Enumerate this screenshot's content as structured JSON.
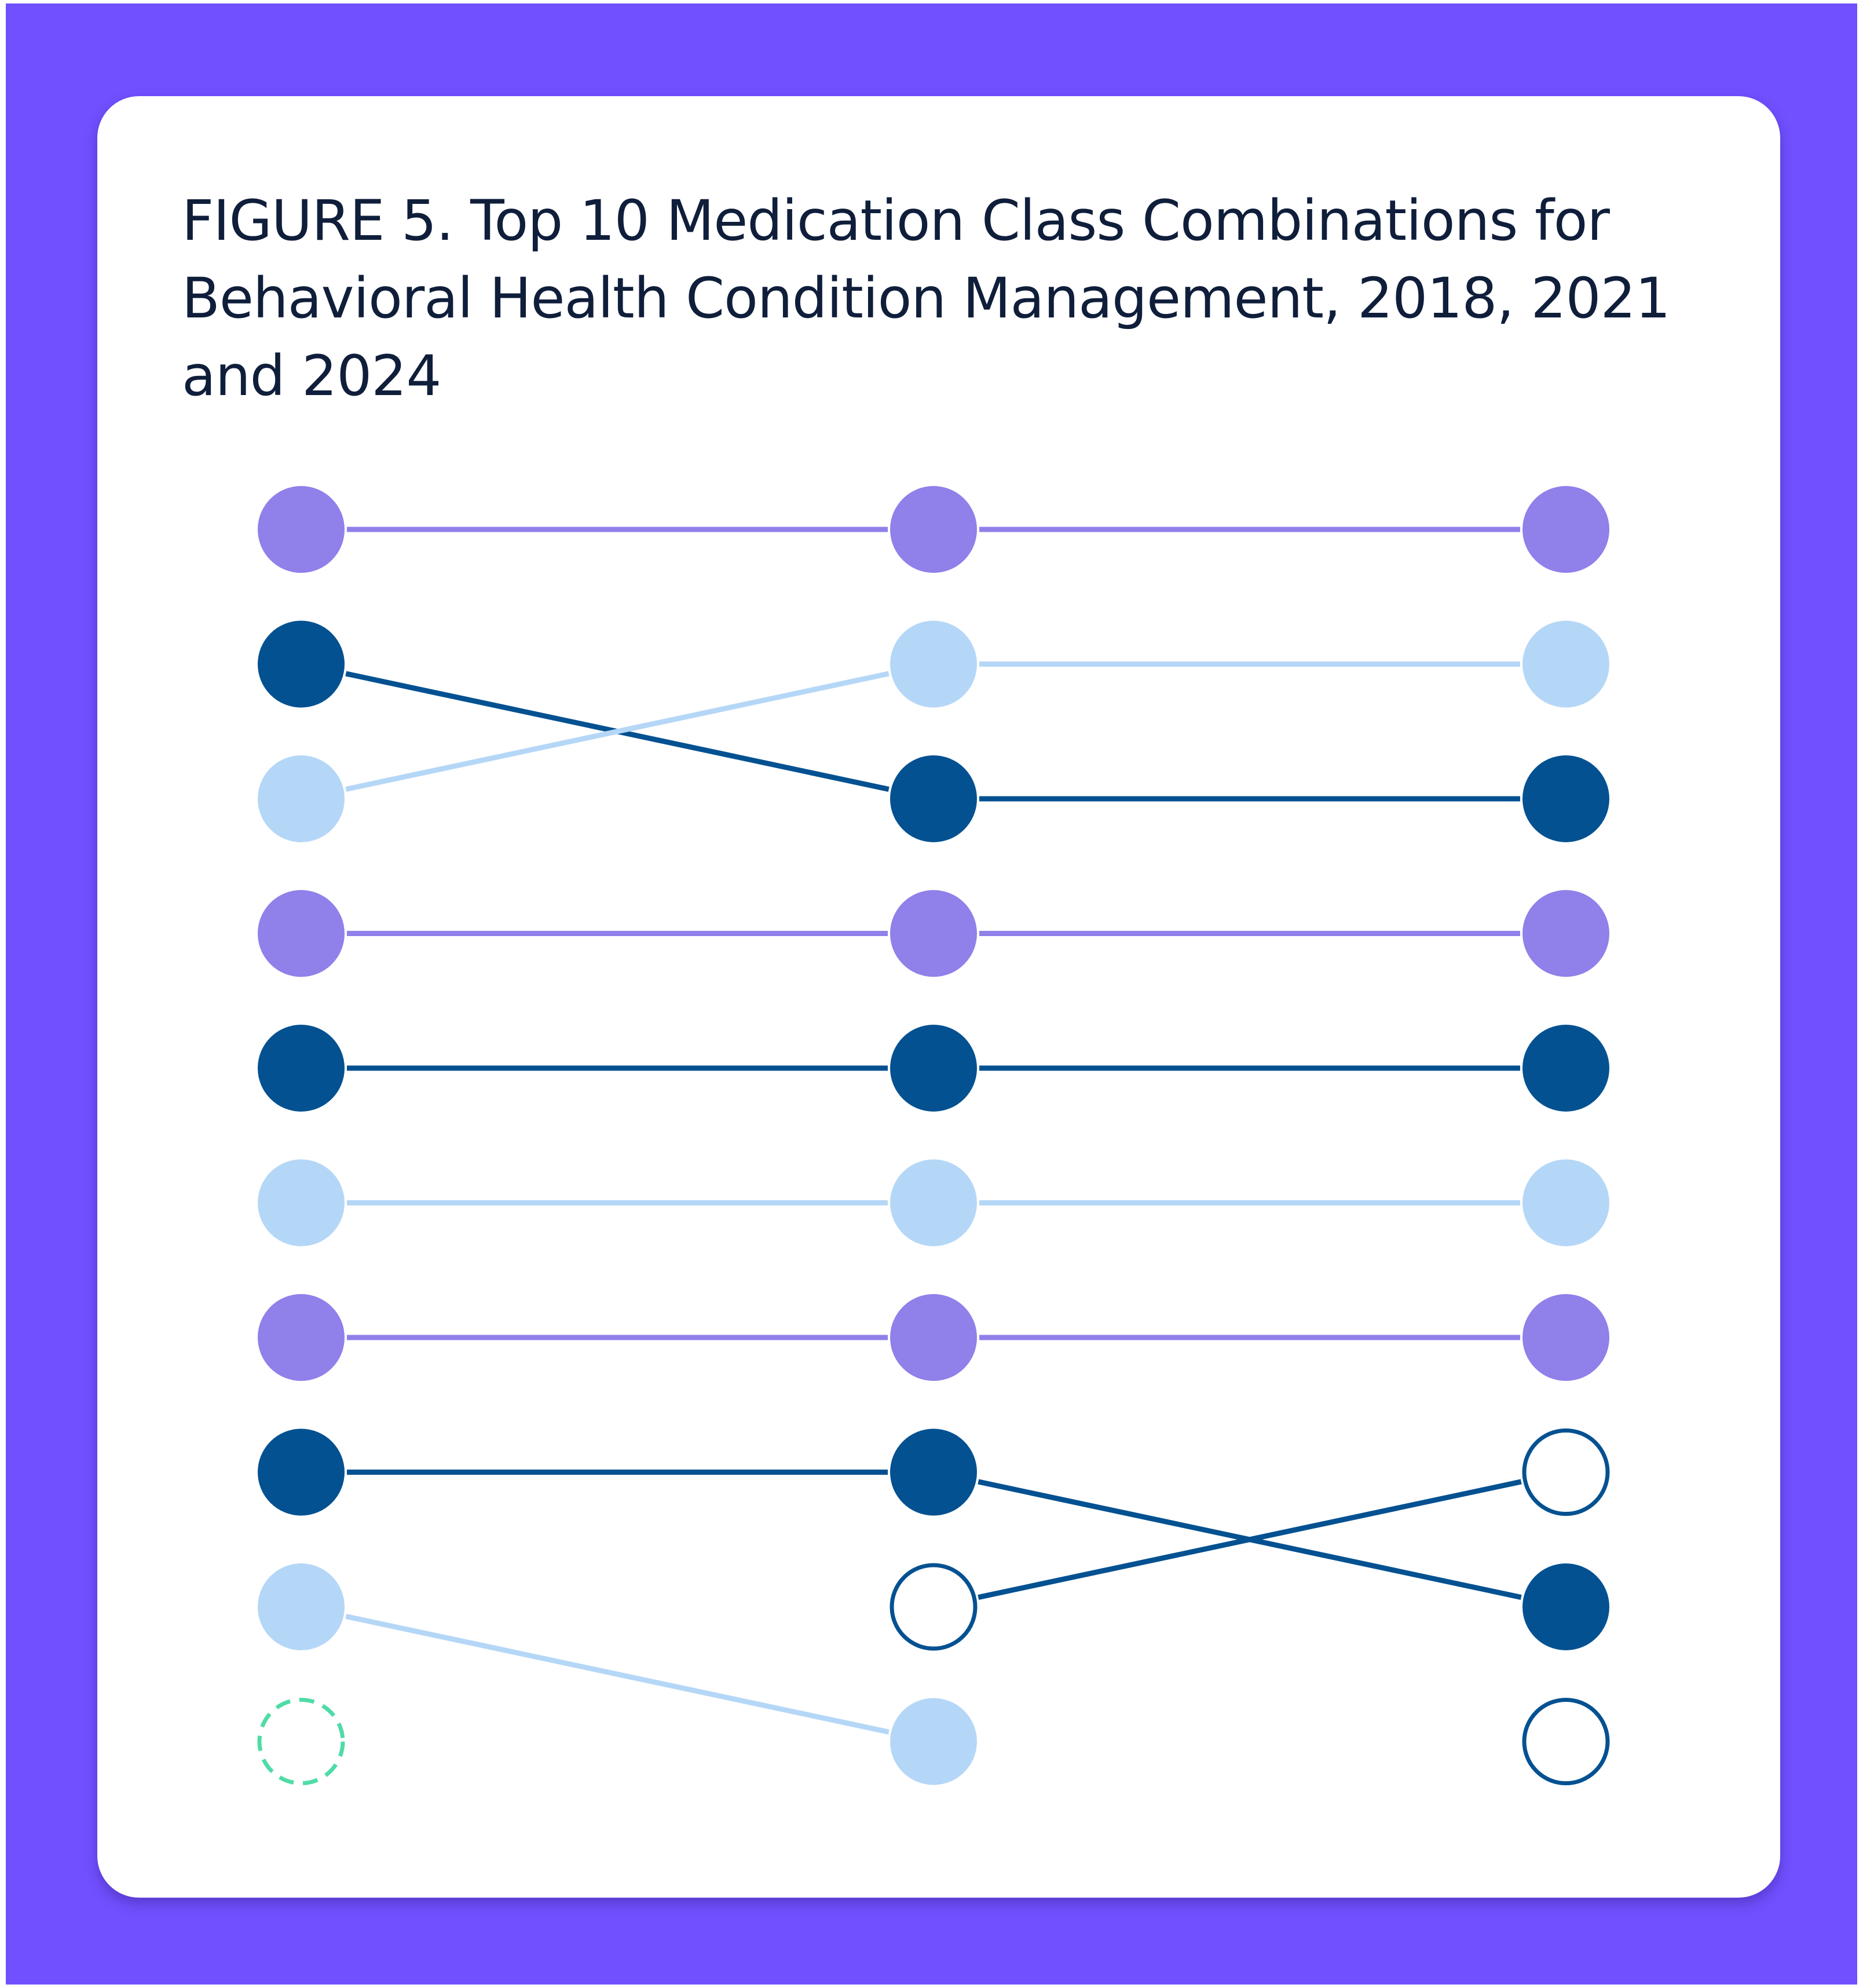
{
  "figure": {
    "title": "FIGURE 5. Top 10 Medication Class Combinations for Behavioral Health Condition Management, 2018, 2021 and 2024"
  },
  "colors": {
    "frame": "#7150ff",
    "card": "#ffffff",
    "purple": "#8f80ea",
    "navy": "#035191",
    "light_blue": "#b5d7f7",
    "green_dashed": "#4fdca6"
  },
  "chart_data": {
    "type": "slope",
    "x": [
      "2018",
      "2021",
      "2024"
    ],
    "rank_range": [
      1,
      10
    ],
    "series": [
      {
        "color": "purple",
        "style": "filled",
        "ranks": [
          1,
          1,
          1
        ]
      },
      {
        "color": "navy",
        "style": "filled",
        "ranks": [
          2,
          3,
          3
        ]
      },
      {
        "color": "light_blue",
        "style": "filled",
        "ranks": [
          3,
          2,
          2
        ]
      },
      {
        "color": "purple",
        "style": "filled",
        "ranks": [
          4,
          4,
          4
        ]
      },
      {
        "color": "navy",
        "style": "filled",
        "ranks": [
          5,
          5,
          5
        ]
      },
      {
        "color": "light_blue",
        "style": "filled",
        "ranks": [
          6,
          6,
          6
        ]
      },
      {
        "color": "purple",
        "style": "filled",
        "ranks": [
          7,
          7,
          7
        ]
      },
      {
        "color": "navy",
        "style": "filled",
        "ranks": [
          8,
          8,
          9
        ]
      },
      {
        "color": "light_blue",
        "style": "filled",
        "ranks": [
          9,
          10,
          null
        ]
      },
      {
        "color": "navy",
        "style": "outline",
        "ranks": [
          null,
          9,
          8
        ]
      },
      {
        "color": "navy",
        "style": "outline",
        "ranks": [
          null,
          null,
          10
        ]
      },
      {
        "color": "green_dashed",
        "style": "dashed",
        "ranks": [
          10,
          null,
          null
        ]
      }
    ]
  }
}
